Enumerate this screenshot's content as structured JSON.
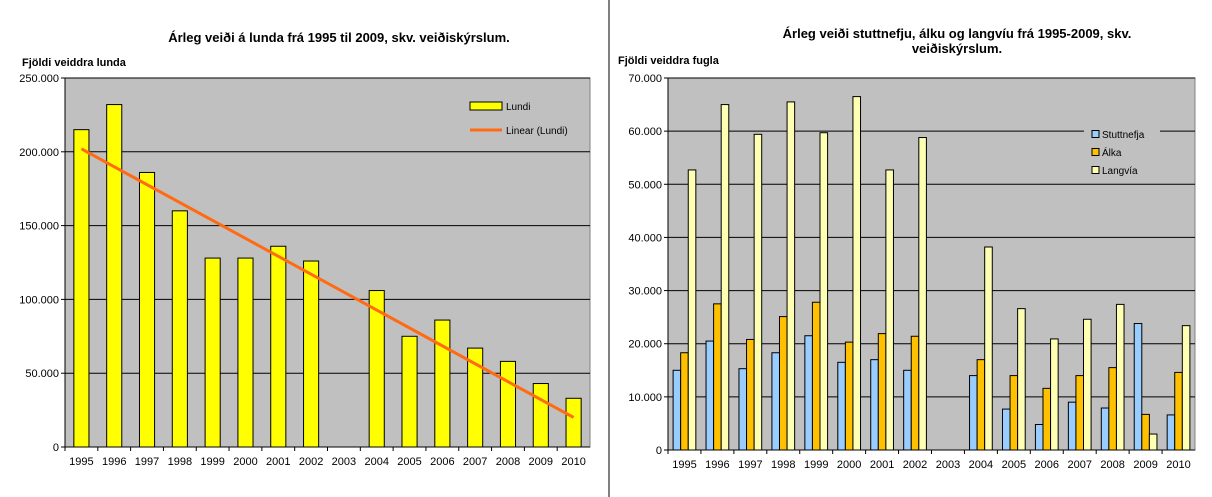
{
  "colors": {
    "plot_bg": "#c0c0c0",
    "lundi": "#ffff00",
    "trend": "#ff6a13",
    "stuttnefja": "#99ccff",
    "alka": "#ffc000",
    "langvia": "#ffffb3"
  },
  "chart_data": [
    {
      "type": "bar",
      "title": "Árleg veiði á lunda frá 1995 til 2009, skv. veiðiskýrslum.",
      "ylabel": "Fjöldi veiddra lunda",
      "xlabel": "",
      "ylim": [
        0,
        250000
      ],
      "yticks": [
        "0",
        "50.000",
        "100.000",
        "150.000",
        "200.000",
        "250.000"
      ],
      "ytick_values": [
        0,
        50000,
        100000,
        150000,
        200000,
        250000
      ],
      "categories": [
        "1995",
        "1996",
        "1997",
        "1998",
        "1999",
        "2000",
        "2001",
        "2002",
        "2003",
        "2004",
        "2005",
        "2006",
        "2007",
        "2008",
        "2009",
        "2010"
      ],
      "series": [
        {
          "name": "Lundi",
          "values": [
            215000,
            232000,
            186000,
            160000,
            128000,
            128000,
            136000,
            126000,
            0,
            106000,
            75000,
            86000,
            67000,
            58000,
            43000,
            33000
          ]
        }
      ],
      "trendline": {
        "name": "Linear (Lundi)",
        "start": 202000,
        "end": 20000
      },
      "legend": "top-right",
      "grid": true
    },
    {
      "type": "bar",
      "title_lines": [
        "Árleg veiði stuttnefju, álku og langvíu frá 1995-2009, skv.",
        "veiðiskýrslum."
      ],
      "ylabel": "Fjöldi veiddra fugla",
      "xlabel": "",
      "ylim": [
        0,
        70000
      ],
      "yticks": [
        "0",
        "10.000",
        "20.000",
        "30.000",
        "40.000",
        "50.000",
        "60.000",
        "70.000"
      ],
      "ytick_values": [
        0,
        10000,
        20000,
        30000,
        40000,
        50000,
        60000,
        70000
      ],
      "categories": [
        "1995",
        "1996",
        "1997",
        "1998",
        "1999",
        "2000",
        "2001",
        "2002",
        "2003",
        "2004",
        "2005",
        "2006",
        "2007",
        "2008",
        "2009",
        "2010"
      ],
      "series": [
        {
          "name": "Stuttnefja",
          "values": [
            15000,
            20500,
            15300,
            18300,
            21500,
            16500,
            17000,
            15000,
            0,
            14000,
            7700,
            4800,
            9000,
            7900,
            23800,
            6600
          ]
        },
        {
          "name": "Álka",
          "values": [
            18300,
            27500,
            20800,
            25100,
            27800,
            20300,
            21900,
            21400,
            0,
            17000,
            14000,
            11600,
            14000,
            15500,
            6700,
            14600
          ]
        },
        {
          "name": "Langvía",
          "values": [
            52700,
            65000,
            59400,
            65500,
            59700,
            66500,
            52700,
            58800,
            0,
            38200,
            26600,
            20900,
            24600,
            27400,
            3000,
            23400
          ]
        }
      ],
      "legend": "top-right",
      "grid": true
    }
  ]
}
